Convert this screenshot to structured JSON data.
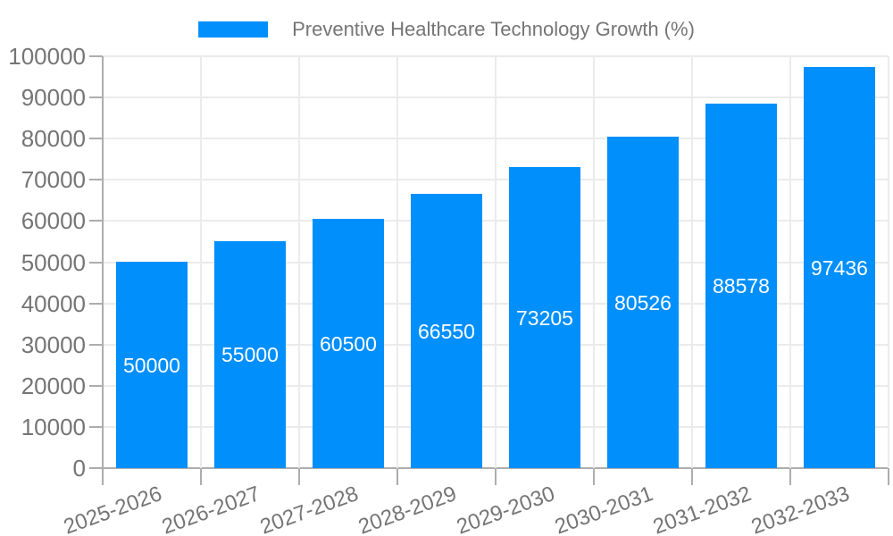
{
  "legend": {
    "series_label": "Preventive Healthcare Technology Growth (%)"
  },
  "chart_data": {
    "type": "bar",
    "title": "Preventive Healthcare Technology Growth (%)",
    "categories": [
      "2025-2026",
      "2026-2027",
      "2027-2028",
      "2028-2029",
      "2029-2030",
      "2030-2031",
      "2031-2032",
      "2032-2033"
    ],
    "values": [
      50000,
      55000,
      60500,
      66550,
      73205,
      80526,
      88578,
      97436
    ],
    "bar_value_labels": [
      "50000",
      "55000",
      "60500",
      "66550",
      "73205",
      "80526",
      "88578",
      "97436"
    ],
    "xlabel": "",
    "ylabel": "",
    "ylim": [
      0,
      100000
    ],
    "ytick_step": 10000,
    "ytick_labels": [
      "0",
      "10000",
      "20000",
      "30000",
      "40000",
      "50000",
      "60000",
      "70000",
      "80000",
      "90000",
      "100000"
    ],
    "grid": true,
    "legend_position": "top",
    "x_label_rotation_deg": -20,
    "colors": {
      "bar": "#008FFB",
      "axis_label": "#757575",
      "value_label": "#FFFFFF",
      "gridline": "#EBEBEB",
      "axis_line": "#ADADAD",
      "background": "#FFFFFF"
    }
  }
}
